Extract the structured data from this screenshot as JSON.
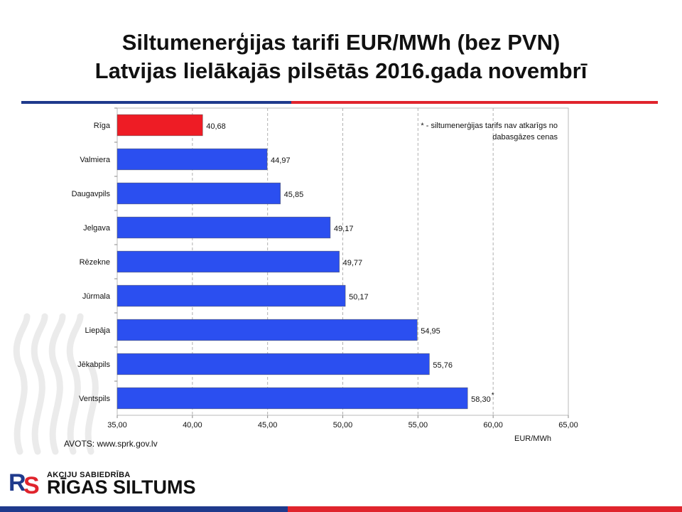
{
  "slide": {
    "title_line1": "Siltumenerģijas tarifi EUR/MWh (bez PVN)",
    "title_line2": "Latvijas lielākajās pilsētās 2016.gada novembrī",
    "source": "AVOTS: www.sprk.gov.lv",
    "logo_small": "AKCIJU SABIEDRĪBA",
    "logo_big": "RĪGAS SILTUMS",
    "colors": {
      "blue": "#2b4ff0",
      "red": "#ee1c25",
      "navy": "#1f3a8c"
    }
  },
  "chart_data": {
    "type": "bar",
    "orientation": "horizontal",
    "categories": [
      "Rīga",
      "Valmiera",
      "Daugavpils",
      "Jelgava",
      "Rēzekne",
      "Jūrmala",
      "Liepāja",
      "Jēkabpils",
      "Ventspils"
    ],
    "values": [
      40.68,
      44.97,
      45.85,
      49.17,
      49.77,
      50.17,
      54.95,
      55.76,
      58.3
    ],
    "value_labels": [
      "40,68",
      "44,97",
      "45,85",
      "49,17",
      "49,77",
      "50,17",
      "54,95",
      "55,76",
      "58,30"
    ],
    "bar_colors": [
      "#ee1c25",
      "#2b4ff0",
      "#2b4ff0",
      "#2b4ff0",
      "#2b4ff0",
      "#2b4ff0",
      "#2b4ff0",
      "#2b4ff0",
      "#2b4ff0"
    ],
    "xlim": [
      35,
      65
    ],
    "x_ticks": [
      35,
      40,
      45,
      50,
      55,
      60,
      65
    ],
    "x_tick_labels": [
      "35,00",
      "40,00",
      "45,00",
      "50,00",
      "55,00",
      "60,00",
      "65,00"
    ],
    "xlabel": "EUR/MWh",
    "grid": "vertical dashed",
    "annotation": [
      "* - siltumenerģijas tarifs nav atkarīgs no",
      "dabasgāzes cenas"
    ],
    "annotation_mark": {
      "category": "Ventspils",
      "text": "*"
    }
  }
}
